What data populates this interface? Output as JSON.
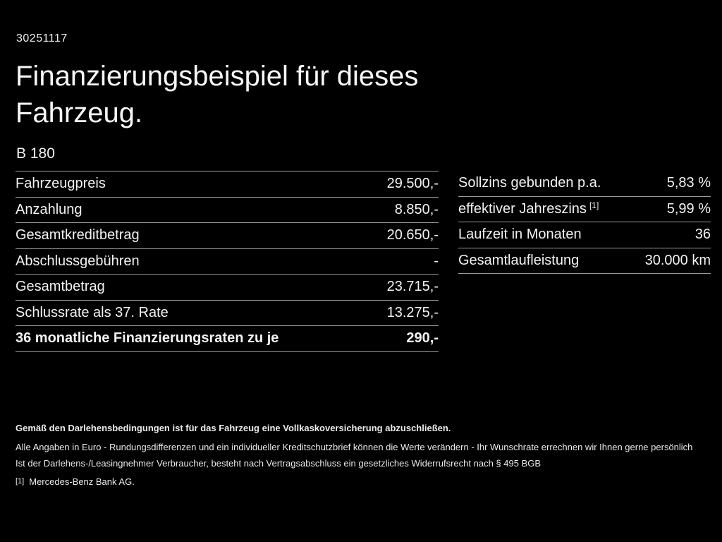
{
  "header": {
    "vehicle_id": "30251117",
    "title": "Finanzierungsbeispiel für dieses Fahrzeug.",
    "model": "B 180"
  },
  "left_table": {
    "rows": [
      {
        "label": "Fahrzeugpreis",
        "value": "29.500,-"
      },
      {
        "label": "Anzahlung",
        "value": "8.850,-"
      },
      {
        "label": "Gesamtkreditbetrag",
        "value": "20.650,-"
      },
      {
        "label": "Abschlussgebühren",
        "value": "-"
      },
      {
        "label": "Gesamtbetrag",
        "value": "23.715,-"
      },
      {
        "label": "Schlussrate als 37. Rate",
        "value": "13.275,-"
      },
      {
        "label": "36 monatliche Finanzierungsraten zu je",
        "value": "290,-"
      }
    ]
  },
  "right_table": {
    "rows": [
      {
        "label": "Sollzins gebunden p.a.",
        "value": "5,83 %"
      },
      {
        "label": "effektiver Jahreszins",
        "sup": "[1]",
        "value": "5,99 %"
      },
      {
        "label": "Laufzeit in Monaten",
        "value": "36"
      },
      {
        "label": "Gesamtlaufleistung",
        "value": "30.000 km"
      }
    ]
  },
  "footer": {
    "insurance_note": "Gemäß den Darlehensbedingungen ist für das Fahrzeug eine Vollkaskoversicherung abzuschließen.",
    "note_line1": "Alle Angaben in Euro - Rundungsdifferenzen und ein individueller Kreditschutzbrief können die Werte verändern - Ihr Wunschrate errechnen wir Ihnen gerne persönlich",
    "note_line2": "Ist der Darlehens-/Leasingnehmer Verbraucher, besteht nach Vertragsabschluss ein gesetzliches Widerrufsrecht nach § 495 BGB",
    "footnote_marker": "[1]",
    "footnote_text": "Mercedes-Benz Bank AG."
  },
  "colors": {
    "background": "#000000",
    "text": "#f2f2f2",
    "divider": "#9c9c9c"
  }
}
